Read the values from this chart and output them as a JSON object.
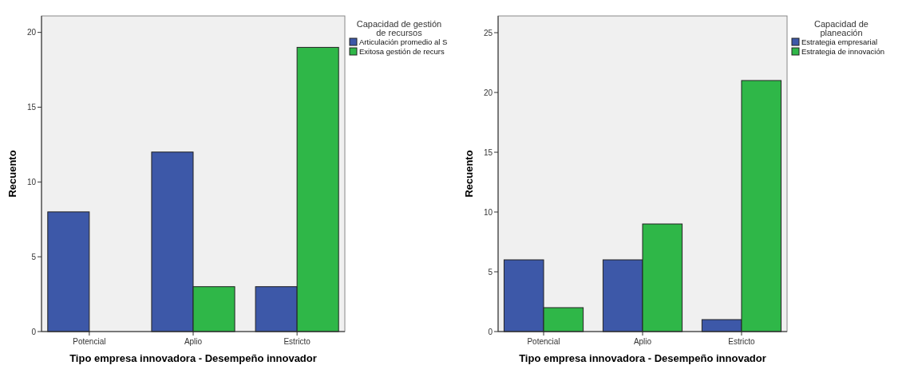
{
  "chart_data": [
    {
      "type": "bar",
      "categories": [
        "Potencial",
        "Aplio",
        "Estricto"
      ],
      "xlabel": "Tipo empresa innovadora  - Desempeño innovador",
      "ylabel": "Recuento",
      "legend_title": "Capacidad de gestión\nde recursos",
      "legend": "right",
      "series": [
        {
          "name": "Articulación promedio al S",
          "color": "#3d58a8",
          "values": [
            8,
            12,
            3
          ]
        },
        {
          "name": "Exitosa gestión de recurs",
          "color": "#2fb748",
          "values": [
            0,
            3,
            19
          ]
        }
      ],
      "ylim": [
        0,
        21.1
      ],
      "yticks": [
        0,
        5,
        10,
        15,
        20
      ]
    },
    {
      "type": "bar",
      "categories": [
        "Potencial",
        "Aplio",
        "Estricto"
      ],
      "xlabel": "Tipo empresa innovadora  - Desempeño innovador",
      "ylabel": "Recuento",
      "legend_title": "Capacidad de\nplaneación",
      "legend": "right",
      "series": [
        {
          "name": "Estrategia empresarial",
          "color": "#3d58a8",
          "values": [
            6,
            6,
            1
          ]
        },
        {
          "name": "Estrategia de innovación",
          "color": "#2fb748",
          "values": [
            2,
            9,
            21
          ]
        }
      ],
      "ylim": [
        0,
        26.4
      ],
      "yticks": [
        0,
        5,
        10,
        15,
        20,
        25
      ]
    }
  ]
}
